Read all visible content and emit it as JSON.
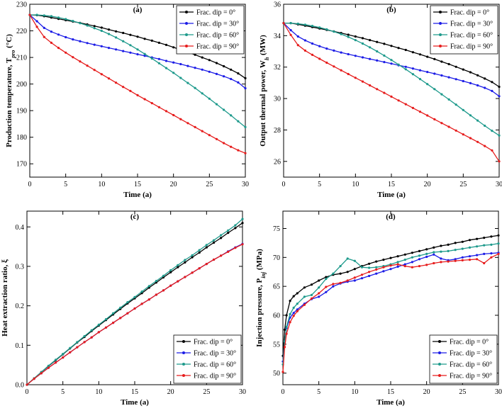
{
  "chart_data": [
    {
      "type": "line",
      "title": "(a)",
      "xlabel": "Time (a)",
      "ylabel": "Production temperature, T",
      "ylabel_sub": "pro",
      "ylabel_unit": " (°C)",
      "xlim": [
        0,
        30
      ],
      "ylim": [
        165,
        230
      ],
      "xticks": [
        0,
        5,
        10,
        15,
        20,
        25,
        30
      ],
      "yticks": [
        170,
        180,
        190,
        200,
        210,
        220,
        230
      ],
      "legend_position": "top-right",
      "x": [
        0,
        1,
        2,
        3,
        4,
        5,
        6,
        7,
        8,
        9,
        10,
        11,
        12,
        13,
        14,
        15,
        16,
        17,
        18,
        19,
        20,
        21,
        22,
        23,
        24,
        25,
        26,
        27,
        28,
        29,
        30
      ],
      "series": [
        {
          "name": "Frac. dip = 0°",
          "color": "#000000",
          "values": [
            226,
            225.9,
            225.5,
            225,
            224.5,
            224,
            223.5,
            223,
            222.4,
            221.8,
            221.2,
            220.5,
            219.8,
            219.2,
            218.5,
            217.8,
            217,
            216.3,
            215.5,
            214.7,
            213.8,
            212.9,
            212,
            211,
            210,
            209,
            207.9,
            206.7,
            205.4,
            204,
            202.2
          ]
        },
        {
          "name": "Frac. dip = 30°",
          "color": "#1c1ce6",
          "values": [
            226,
            223.6,
            221.1,
            219.7,
            218.6,
            217.6,
            216.8,
            216.1,
            215.4,
            214.8,
            214.2,
            213.6,
            213,
            212.4,
            211.8,
            211.2,
            210.6,
            210,
            209.4,
            208.7,
            208.1,
            207.5,
            206.8,
            206.1,
            205.4,
            204.6,
            203.8,
            202.9,
            201.9,
            200.6,
            198.4
          ]
        },
        {
          "name": "Frac. dip = 60°",
          "color": "#1e9a8c",
          "values": [
            226,
            226,
            225.8,
            225.5,
            225,
            224.4,
            223.7,
            222.9,
            222,
            221,
            220,
            218.8,
            217.5,
            216.1,
            214.6,
            213,
            211.3,
            209.6,
            207.8,
            206,
            204.2,
            202.3,
            200.4,
            198.5,
            196.5,
            194.5,
            192.4,
            190.3,
            188.2,
            186,
            183.8
          ]
        },
        {
          "name": "Frac. dip = 90°",
          "color": "#e61c1c",
          "values": [
            226,
            221.5,
            217.7,
            215.5,
            213.6,
            211.8,
            210.1,
            208.5,
            206.9,
            205.3,
            203.7,
            202.1,
            200.5,
            198.9,
            197.4,
            195.8,
            194.3,
            192.8,
            191.3,
            189.8,
            188.3,
            186.8,
            185.3,
            183.8,
            182.3,
            180.8,
            179.3,
            177.8,
            176.4,
            175.1,
            174
          ]
        }
      ]
    },
    {
      "type": "line",
      "title": "(b)",
      "xlabel": "Time (a)",
      "ylabel": "Output thermal power, W",
      "ylabel_sub": "h",
      "ylabel_unit": " (MW)",
      "xlim": [
        0,
        30
      ],
      "ylim": [
        25,
        36
      ],
      "xticks": [
        0,
        5,
        10,
        15,
        20,
        25,
        30
      ],
      "yticks": [
        26,
        28,
        30,
        32,
        34,
        36
      ],
      "legend_position": "top-right",
      "x": [
        0,
        1,
        2,
        3,
        4,
        5,
        6,
        7,
        8,
        9,
        10,
        11,
        12,
        13,
        14,
        15,
        16,
        17,
        18,
        19,
        20,
        21,
        22,
        23,
        24,
        25,
        26,
        27,
        28,
        29,
        30
      ],
      "series": [
        {
          "name": "Frac. dip = 0°",
          "color": "#000000",
          "values": [
            34.8,
            34.8,
            34.72,
            34.64,
            34.55,
            34.46,
            34.37,
            34.27,
            34.17,
            34.06,
            33.95,
            33.84,
            33.72,
            33.6,
            33.48,
            33.35,
            33.22,
            33.09,
            32.95,
            32.81,
            32.66,
            32.51,
            32.35,
            32.19,
            32.02,
            31.85,
            31.67,
            31.48,
            31.27,
            31.05,
            30.75
          ]
        },
        {
          "name": "Frac. dip = 30°",
          "color": "#1c1ce6",
          "values": [
            34.8,
            34.35,
            33.95,
            33.7,
            33.5,
            33.33,
            33.18,
            33.05,
            32.93,
            32.82,
            32.72,
            32.62,
            32.52,
            32.42,
            32.32,
            32.22,
            32.12,
            32.02,
            31.91,
            31.8,
            31.69,
            31.58,
            31.47,
            31.35,
            31.23,
            31.11,
            30.98,
            30.84,
            30.68,
            30.48,
            30.15
          ]
        },
        {
          "name": "Frac. dip = 60°",
          "color": "#1e9a8c",
          "values": [
            34.8,
            34.8,
            34.76,
            34.7,
            34.62,
            34.52,
            34.4,
            34.26,
            34.1,
            33.92,
            33.72,
            33.5,
            33.26,
            33,
            32.73,
            32.45,
            32.16,
            31.86,
            31.55,
            31.24,
            30.92,
            30.6,
            30.27,
            29.94,
            29.61,
            29.27,
            28.93,
            28.6,
            28.27,
            27.95,
            27.65
          ]
        },
        {
          "name": "Frac. dip = 90°",
          "color": "#e61c1c",
          "values": [
            34.8,
            34.05,
            33.4,
            33.05,
            32.78,
            32.53,
            32.28,
            32.04,
            31.8,
            31.56,
            31.32,
            31.08,
            30.84,
            30.6,
            30.36,
            30.12,
            29.88,
            29.64,
            29.4,
            29.16,
            28.92,
            28.68,
            28.44,
            28.2,
            27.96,
            27.72,
            27.48,
            27.24,
            26.98,
            26.7,
            26
          ]
        }
      ]
    },
    {
      "type": "line",
      "title": "(c)",
      "xlabel": "Time (a)",
      "ylabel": "Heat extraction ratio, ξ",
      "xlim": [
        0,
        30
      ],
      "ylim": [
        0,
        0.44
      ],
      "xticks": [
        0,
        5,
        10,
        15,
        20,
        25,
        30
      ],
      "yticks": [
        0,
        0.1,
        0.2,
        0.3,
        0.4
      ],
      "ytick_labels": [
        "0.0",
        "0.1",
        "0.2",
        "0.3",
        "0.4"
      ],
      "legend_position": "bottom-right",
      "x": [
        0,
        1,
        2,
        3,
        4,
        5,
        6,
        7,
        8,
        9,
        10,
        11,
        12,
        13,
        14,
        15,
        16,
        17,
        18,
        19,
        20,
        21,
        22,
        23,
        24,
        25,
        26,
        27,
        28,
        29,
        30
      ],
      "series": [
        {
          "name": "Frac. dip = 0°",
          "color": "#000000",
          "values": [
            0,
            0.016,
            0.032,
            0.047,
            0.062,
            0.077,
            0.092,
            0.107,
            0.121,
            0.136,
            0.15,
            0.164,
            0.178,
            0.192,
            0.206,
            0.219,
            0.232,
            0.246,
            0.259,
            0.272,
            0.285,
            0.298,
            0.31,
            0.323,
            0.335,
            0.348,
            0.36,
            0.372,
            0.385,
            0.397,
            0.41
          ]
        },
        {
          "name": "Frac. dip = 30°",
          "color": "#1c1ce6",
          "values": [
            0,
            0.015,
            0.029,
            0.043,
            0.056,
            0.069,
            0.082,
            0.095,
            0.108,
            0.12,
            0.133,
            0.145,
            0.157,
            0.169,
            0.181,
            0.193,
            0.205,
            0.216,
            0.228,
            0.239,
            0.251,
            0.262,
            0.273,
            0.284,
            0.295,
            0.306,
            0.317,
            0.327,
            0.338,
            0.348,
            0.357
          ]
        },
        {
          "name": "Frac. dip = 60°",
          "color": "#1e9a8c",
          "values": [
            0,
            0.016,
            0.032,
            0.048,
            0.063,
            0.078,
            0.093,
            0.108,
            0.123,
            0.138,
            0.152,
            0.166,
            0.181,
            0.195,
            0.209,
            0.222,
            0.236,
            0.25,
            0.263,
            0.276,
            0.29,
            0.303,
            0.316,
            0.328,
            0.341,
            0.354,
            0.366,
            0.379,
            0.391,
            0.404,
            0.42
          ]
        },
        {
          "name": "Frac. dip = 90°",
          "color": "#e61c1c",
          "values": [
            0,
            0.015,
            0.029,
            0.043,
            0.056,
            0.069,
            0.082,
            0.095,
            0.108,
            0.12,
            0.133,
            0.145,
            0.157,
            0.169,
            0.181,
            0.193,
            0.205,
            0.216,
            0.228,
            0.239,
            0.251,
            0.262,
            0.273,
            0.284,
            0.295,
            0.306,
            0.317,
            0.327,
            0.337,
            0.347,
            0.356
          ]
        }
      ]
    },
    {
      "type": "line",
      "title": "(d)",
      "xlabel": "Time (a)",
      "ylabel": "Injection pressure, P",
      "ylabel_sub": "inj",
      "ylabel_unit": " (MPa)",
      "xlim": [
        0,
        30
      ],
      "ylim": [
        48,
        78
      ],
      "xticks": [
        0,
        5,
        10,
        15,
        20,
        25,
        30
      ],
      "yticks": [
        50,
        55,
        60,
        65,
        70,
        75
      ],
      "legend_position": "bottom-right",
      "x": [
        0,
        0.25,
        0.5,
        1,
        1.5,
        2,
        3,
        4,
        5,
        6,
        7,
        8,
        9,
        10,
        11,
        12,
        13,
        14,
        15,
        16,
        17,
        18,
        19,
        20,
        21,
        22,
        23,
        24,
        25,
        26,
        27,
        28,
        29,
        30
      ],
      "series": [
        {
          "name": "Frac. dip = 0°",
          "color": "#000000",
          "values": [
            53,
            57.5,
            60,
            62.5,
            63.3,
            63.8,
            64.8,
            65.3,
            66,
            66.6,
            67,
            67.2,
            67.5,
            68,
            68.5,
            68.9,
            69.3,
            69.6,
            69.9,
            70.2,
            70.5,
            70.8,
            71.1,
            71.4,
            71.7,
            72,
            72.2,
            72.5,
            72.7,
            73,
            73.2,
            73.4,
            73.6,
            73.8
          ]
        },
        {
          "name": "Frac. dip = 30°",
          "color": "#1c1ce6",
          "values": [
            52,
            55.5,
            57.8,
            59.6,
            60.4,
            61,
            62,
            62.8,
            63.2,
            64,
            65,
            65.5,
            65.8,
            66,
            66.4,
            66.8,
            67.2,
            67.6,
            68,
            68.4,
            68.8,
            69.2,
            69.7,
            70.1,
            70.5,
            69.8,
            69.5,
            69.7,
            70,
            70.2,
            70.4,
            70.6,
            70.7,
            70.8
          ]
        },
        {
          "name": "Frac. dip = 60°",
          "color": "#1e9a8c",
          "values": [
            51.5,
            55.5,
            58,
            60.2,
            61.3,
            62,
            63.2,
            63.5,
            64.8,
            66.3,
            67.2,
            68.5,
            69.8,
            69.4,
            68.3,
            68.2,
            68.3,
            68.5,
            68.8,
            69.2,
            69.6,
            70,
            70.3,
            70.6,
            70.9,
            71,
            71.1,
            71.3,
            71.5,
            71.7,
            71.9,
            72.1,
            72.2,
            72.4
          ]
        },
        {
          "name": "Frac. dip = 90°",
          "color": "#e61c1c",
          "values": [
            50.2,
            54.5,
            56.8,
            58.8,
            59.9,
            60.7,
            61.8,
            62.9,
            63.8,
            64.9,
            65.4,
            65.6,
            66,
            66.5,
            67,
            67.5,
            67.9,
            68.3,
            68.6,
            68.8,
            68.5,
            68.3,
            68.5,
            68.7,
            69,
            69.2,
            69.3,
            69.4,
            69.5,
            69.6,
            69.7,
            69,
            70,
            70.6
          ]
        }
      ]
    }
  ]
}
